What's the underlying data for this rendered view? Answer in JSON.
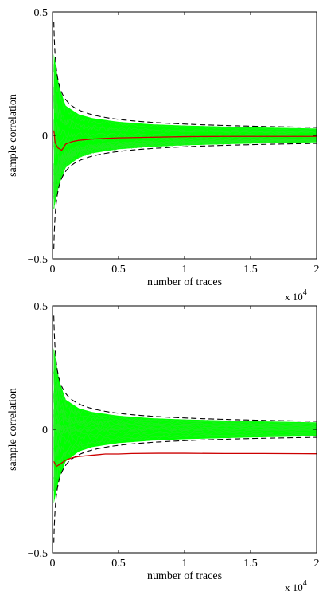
{
  "chart_data": [
    {
      "type": "line",
      "panel": "top",
      "xlabel": "number of traces",
      "ylabel": "sample correlation",
      "x_scale_note": {
        "base": "x 10",
        "exponent": "4"
      },
      "xlim": [
        0,
        20000
      ],
      "ylim": [
        -0.5,
        0.5
      ],
      "x_ticks": [
        0,
        5000,
        10000,
        15000,
        20000
      ],
      "x_tick_labels": [
        "0",
        "0.5",
        "1",
        "1.5",
        "2"
      ],
      "y_ticks": [
        -0.5,
        0,
        0.5
      ],
      "y_tick_labels": [
        "−0.5",
        "0",
        "0.5"
      ],
      "bound_coefficient": 4.6,
      "bound_start": 100,
      "band": {
        "color": "#00ff00",
        "x": [
          100,
          500,
          1000,
          2000,
          3000,
          5000,
          7500,
          10000,
          15000,
          20000
        ],
        "upper": [
          0.33,
          0.2,
          0.12,
          0.085,
          0.07,
          0.055,
          0.045,
          0.04,
          0.033,
          0.028
        ],
        "lower": [
          -0.3,
          -0.2,
          -0.13,
          -0.09,
          -0.072,
          -0.056,
          -0.046,
          -0.04,
          -0.033,
          -0.028
        ]
      },
      "highlight": {
        "color": "#cc0000",
        "x": [
          100,
          200,
          400,
          700,
          1000,
          1500,
          2000,
          3000,
          4000,
          5000,
          7000,
          10000,
          13000,
          16000,
          20000
        ],
        "y": [
          0.02,
          -0.03,
          -0.05,
          -0.06,
          -0.035,
          -0.025,
          -0.02,
          -0.015,
          -0.012,
          -0.01,
          -0.008,
          -0.005,
          -0.004,
          -0.004,
          -0.004
        ]
      }
    },
    {
      "type": "line",
      "panel": "bottom",
      "xlabel": "number of traces",
      "ylabel": "sample correlation",
      "x_scale_note": {
        "base": "x 10",
        "exponent": "4"
      },
      "xlim": [
        0,
        20000
      ],
      "ylim": [
        -0.5,
        0.5
      ],
      "x_ticks": [
        0,
        5000,
        10000,
        15000,
        20000
      ],
      "x_tick_labels": [
        "0",
        "0.5",
        "1",
        "1.5",
        "2"
      ],
      "y_ticks": [
        -0.5,
        0,
        0.5
      ],
      "y_tick_labels": [
        "−0.5",
        "0",
        "0.5"
      ],
      "bound_coefficient": 4.6,
      "bound_start": 100,
      "band": {
        "color": "#00ff00",
        "x": [
          100,
          500,
          1000,
          2000,
          3000,
          5000,
          7500,
          10000,
          15000,
          20000
        ],
        "upper": [
          0.33,
          0.2,
          0.12,
          0.085,
          0.07,
          0.055,
          0.045,
          0.04,
          0.033,
          0.028
        ],
        "lower": [
          -0.3,
          -0.2,
          -0.13,
          -0.09,
          -0.072,
          -0.056,
          -0.046,
          -0.04,
          -0.033,
          -0.028
        ]
      },
      "highlight": {
        "color": "#cc0000",
        "x": [
          100,
          300,
          600,
          1000,
          1500,
          2000,
          3000,
          4000,
          5000,
          6000,
          8000,
          10000,
          13000,
          16000,
          20000
        ],
        "y": [
          -0.13,
          -0.15,
          -0.14,
          -0.125,
          -0.115,
          -0.11,
          -0.105,
          -0.1,
          -0.1,
          -0.098,
          -0.097,
          -0.097,
          -0.098,
          -0.098,
          -0.099
        ]
      }
    }
  ]
}
